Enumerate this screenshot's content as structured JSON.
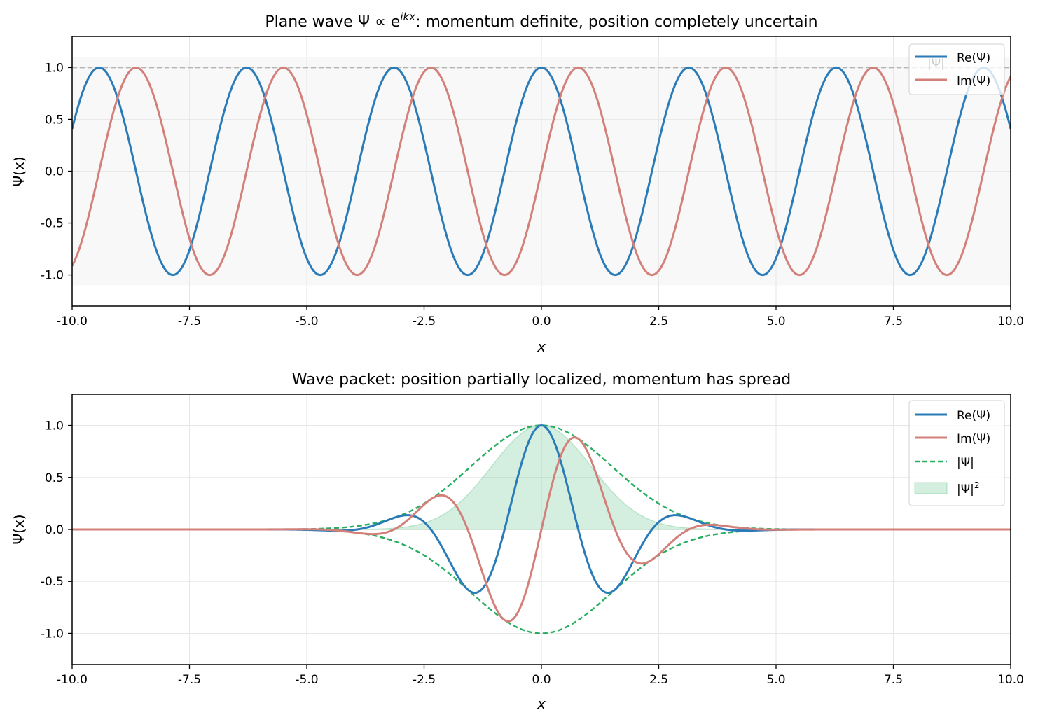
{
  "colors": {
    "re": "#2a7bb7",
    "im": "#d4807a",
    "envelope": "#27ae60",
    "density_fill": "#27ae60",
    "grid": "#e6e6e6",
    "dashed_ref": "#b5b5b5"
  },
  "chart_data": [
    {
      "type": "line",
      "title_prefix": "Plane wave Ψ ∝ e",
      "title_sup": "ikx",
      "title_suffix": ": momentum definite, position completely uncertain",
      "xlabel": "x",
      "ylabel": "Ψ(x)",
      "xlim": [
        -10,
        10
      ],
      "ylim": [
        -1.3,
        1.3
      ],
      "xticks": [
        "-10.0",
        "-7.5",
        "-5.0",
        "-2.5",
        "0.0",
        "2.5",
        "5.0",
        "7.5",
        "10.0"
      ],
      "yticks": [
        "1.0",
        "0.5",
        "0.0",
        "-0.5",
        "-1.0"
      ],
      "grid": true,
      "legend_position": "top-right",
      "legend": [
        "Re(Ψ)",
        "Im(Ψ)"
      ],
      "partially_hidden_label": "|Ψ|",
      "k": 2,
      "series": [
        {
          "name": "Re(Ψ)",
          "function": "cos(2x)"
        },
        {
          "name": "Im(Ψ)",
          "function": "sin(2x)"
        }
      ],
      "constant_modulus": 1.0,
      "shaded_band": [
        -1.1,
        1.1
      ]
    },
    {
      "type": "line",
      "title": "Wave packet: position partially localized, momentum has spread",
      "xlabel": "x",
      "ylabel": "Ψ(x)",
      "xlim": [
        -10,
        10
      ],
      "ylim": [
        -1.3,
        1.3
      ],
      "xticks": [
        "-10.0",
        "-7.5",
        "-5.0",
        "-2.5",
        "0.0",
        "2.5",
        "5.0",
        "7.5",
        "10.0"
      ],
      "yticks": [
        "1.0",
        "0.5",
        "0.0",
        "-0.5",
        "-1.0"
      ],
      "grid": true,
      "legend_position": "top-right",
      "legend": [
        "Re(Ψ)",
        "Im(Ψ)",
        "|Ψ|",
        "|Ψ|2"
      ],
      "k": 2,
      "sigma": 1.5,
      "series": [
        {
          "name": "Re(Ψ)",
          "function": "exp(-x²/(2σ²))·cos(2x)"
        },
        {
          "name": "Im(Ψ)",
          "function": "exp(-x²/(2σ²))·sin(2x)"
        },
        {
          "name": "|Ψ|",
          "function": "±exp(-x²/(2σ²))"
        },
        {
          "name": "|Ψ|2",
          "function": "exp(-x²/σ²)"
        }
      ]
    }
  ]
}
